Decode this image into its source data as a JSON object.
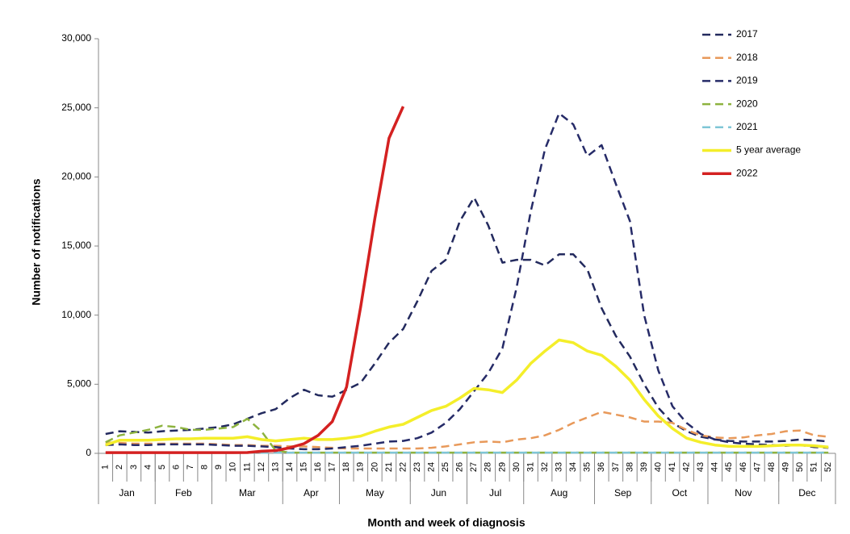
{
  "chart_data": {
    "type": "line",
    "y_axis_label": "Number of notifications",
    "x_axis_label": "Month and week of diagnosis",
    "categories": [
      "1",
      "2",
      "3",
      "4",
      "5",
      "6",
      "7",
      "8",
      "9",
      "10",
      "11",
      "12",
      "13",
      "14",
      "15",
      "16",
      "17",
      "18",
      "19",
      "20",
      "21",
      "22",
      "23",
      "24",
      "25",
      "26",
      "27",
      "28",
      "29",
      "30",
      "31",
      "32",
      "33",
      "34",
      "35",
      "36",
      "37",
      "38",
      "39",
      "40",
      "41",
      "42",
      "43",
      "44",
      "45",
      "46",
      "47",
      "48",
      "49",
      "50",
      "51",
      "52"
    ],
    "category_groups": [
      {
        "label": "Jan",
        "count": 4
      },
      {
        "label": "Feb",
        "count": 4
      },
      {
        "label": "Mar",
        "count": 5
      },
      {
        "label": "Apr",
        "count": 4
      },
      {
        "label": "May",
        "count": 5
      },
      {
        "label": "Jun",
        "count": 4
      },
      {
        "label": "Jul",
        "count": 4
      },
      {
        "label": "Aug",
        "count": 5
      },
      {
        "label": "Sep",
        "count": 4
      },
      {
        "label": "Oct",
        "count": 4
      },
      {
        "label": "Nov",
        "count": 5
      },
      {
        "label": "Dec",
        "count": 4
      }
    ],
    "ylim": [
      0,
      30000
    ],
    "yticks": [
      0,
      {
        "value": 5000,
        "label": "5,000"
      },
      {
        "value": 10000,
        "label": "10,000"
      },
      {
        "value": 15000,
        "label": "15,000"
      },
      {
        "value": 20000,
        "label": "20,000"
      },
      {
        "value": 25000,
        "label": "25,000"
      },
      {
        "value": 30000,
        "label": "30,000"
      }
    ],
    "legend": "top-right",
    "series": [
      {
        "name": "2017",
        "color": "#232a5e",
        "dashed": true,
        "values": [
          1400,
          1600,
          1550,
          1500,
          1600,
          1650,
          1700,
          1800,
          1900,
          2100,
          2500,
          2900,
          3200,
          4000,
          4600,
          4200,
          4100,
          4600,
          5100,
          6500,
          8000,
          9000,
          11000,
          13200,
          14000,
          16800,
          18500,
          16500,
          13800,
          14000,
          14000,
          13600,
          14400,
          14400,
          13300,
          10500,
          8500,
          7000,
          5000,
          3300,
          2200,
          1600,
          1200,
          1000,
          900,
          850,
          850,
          850,
          900,
          1000,
          950,
          850
        ]
      },
      {
        "name": "2018",
        "color": "#e8995a",
        "dashed": true,
        "values": [
          800,
          750,
          700,
          700,
          700,
          700,
          700,
          700,
          650,
          600,
          600,
          550,
          550,
          500,
          500,
          450,
          400,
          350,
          350,
          350,
          350,
          350,
          350,
          400,
          500,
          650,
          800,
          850,
          800,
          1000,
          1100,
          1300,
          1700,
          2200,
          2600,
          3000,
          2800,
          2600,
          2300,
          2300,
          2200,
          1700,
          1300,
          1150,
          1100,
          1150,
          1300,
          1400,
          1600,
          1650,
          1300,
          1200
        ]
      },
      {
        "name": "2019",
        "color": "#262b68",
        "dashed": true,
        "values": [
          600,
          650,
          600,
          600,
          650,
          650,
          650,
          650,
          600,
          550,
          550,
          500,
          450,
          350,
          300,
          300,
          350,
          450,
          550,
          700,
          850,
          900,
          1100,
          1500,
          2200,
          3200,
          4500,
          5800,
          7600,
          12000,
          17500,
          22000,
          24600,
          23800,
          21500,
          22300,
          19500,
          16800,
          10000,
          6000,
          3400,
          2200,
          1400,
          1000,
          800,
          700,
          650,
          600,
          550,
          600,
          450,
          400
        ]
      },
      {
        "name": "2020",
        "color": "#8db33f",
        "dashed": true,
        "values": [
          800,
          1300,
          1500,
          1700,
          2000,
          1900,
          1700,
          1700,
          1800,
          1900,
          2500,
          1600,
          200,
          50,
          50,
          50,
          50,
          50,
          50,
          50,
          50,
          50,
          50,
          50,
          50,
          50,
          50,
          50,
          50,
          50,
          50,
          50,
          50,
          50,
          50,
          50,
          50,
          50,
          50,
          50,
          50,
          50,
          50,
          50,
          50,
          50,
          50,
          50,
          50,
          50,
          50,
          50
        ]
      },
      {
        "name": "2021",
        "color": "#7fc6d6",
        "dashed": true,
        "values": [
          50,
          50,
          50,
          50,
          50,
          50,
          50,
          50,
          50,
          50,
          50,
          50,
          50,
          50,
          50,
          50,
          50,
          50,
          50,
          50,
          50,
          50,
          50,
          50,
          50,
          50,
          50,
          50,
          50,
          50,
          50,
          50,
          50,
          50,
          50,
          50,
          50,
          50,
          50,
          50,
          50,
          50,
          50,
          50,
          50,
          50,
          50,
          50,
          50,
          50,
          50,
          50
        ]
      },
      {
        "name": "5 year average",
        "color": "#f4ee2a",
        "dashed": false,
        "values": [
          600,
          950,
          950,
          950,
          1000,
          1050,
          1050,
          1100,
          1100,
          1100,
          1200,
          1000,
          900,
          1000,
          1100,
          1000,
          1000,
          1100,
          1250,
          1600,
          1900,
          2100,
          2600,
          3100,
          3400,
          4000,
          4700,
          4600,
          4400,
          5300,
          6500,
          7400,
          8200,
          8000,
          7400,
          7100,
          6300,
          5300,
          3900,
          2700,
          1800,
          1100,
          800,
          600,
          500,
          500,
          500,
          550,
          600,
          600,
          550,
          450
        ]
      },
      {
        "name": "2022",
        "color": "#d42121",
        "dashed": false,
        "values": [
          50,
          50,
          50,
          50,
          50,
          50,
          50,
          50,
          50,
          50,
          60,
          150,
          200,
          400,
          700,
          1300,
          2300,
          4800,
          10600,
          17000,
          22800,
          25100,
          null,
          null,
          null,
          null,
          null,
          null,
          null,
          null,
          null,
          null,
          null,
          null,
          null,
          null,
          null,
          null,
          null,
          null,
          null,
          null,
          null,
          null,
          null,
          null,
          null,
          null,
          null,
          null,
          null,
          null
        ]
      }
    ]
  }
}
